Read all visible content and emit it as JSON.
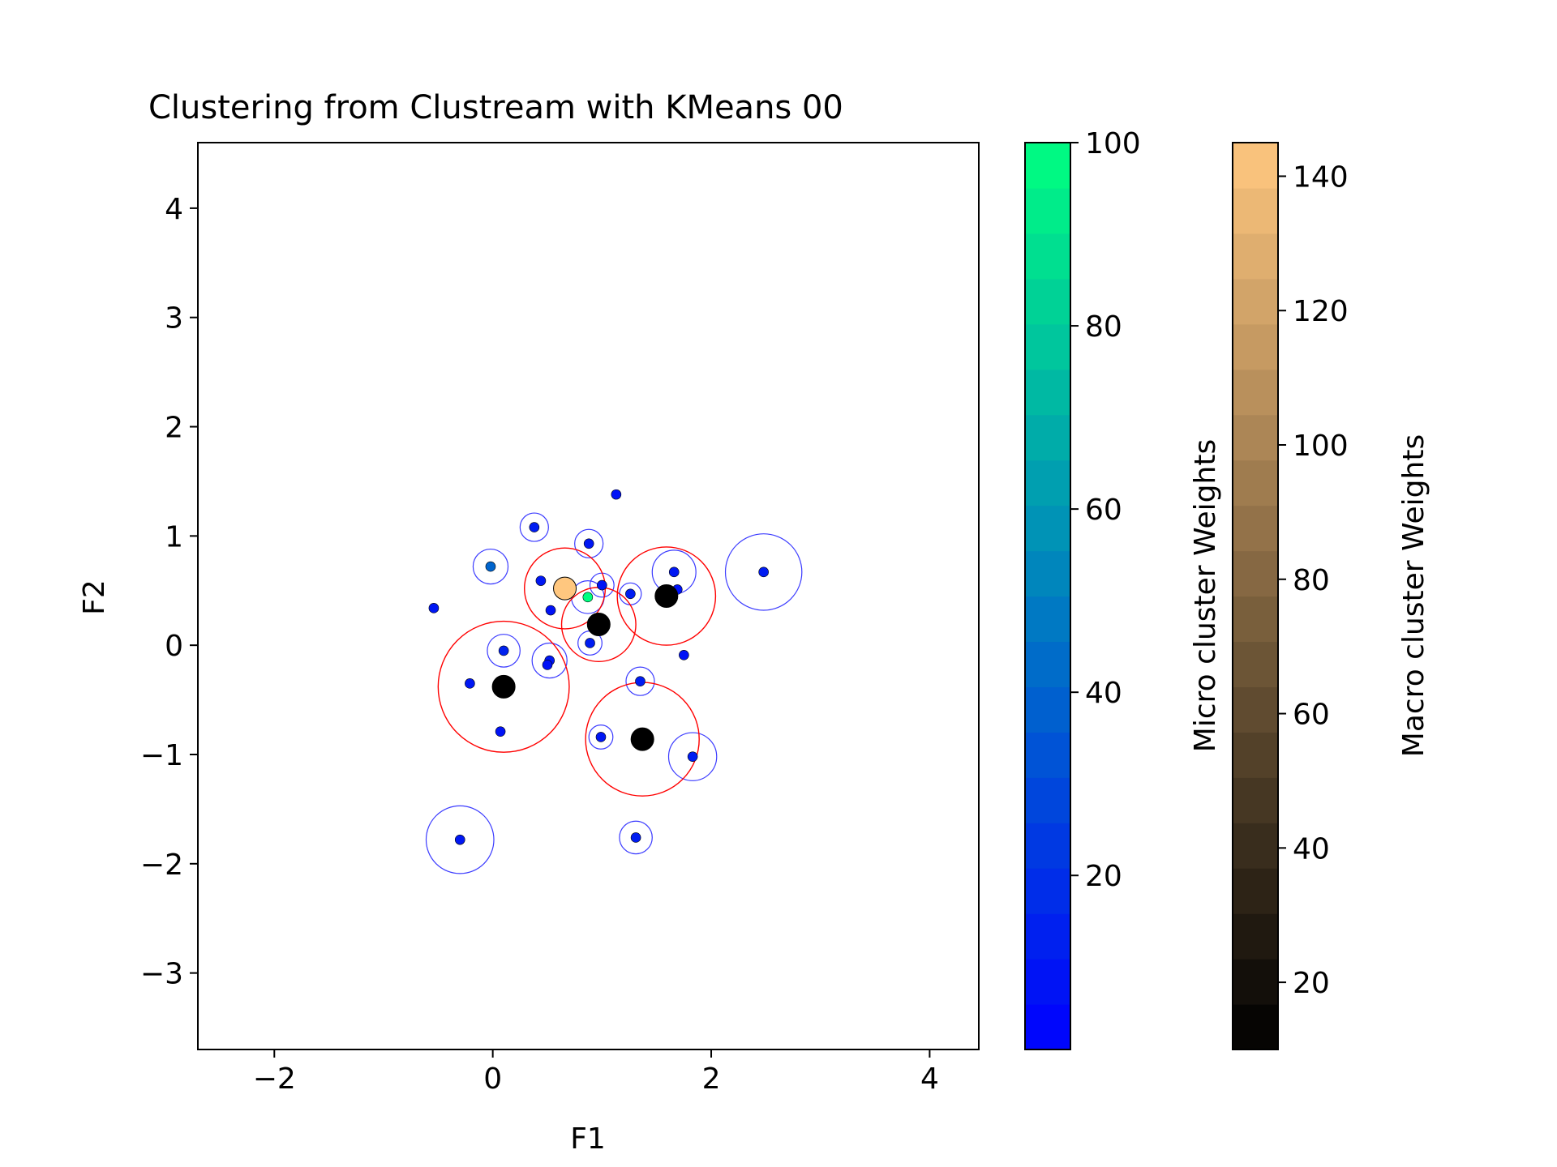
{
  "chart_data": {
    "type": "scatter",
    "title": "Clustering from Clustream with KMeans 00",
    "xlabel": "F1",
    "ylabel": "F2",
    "xlim": [
      -2.7,
      4.45
    ],
    "ylim": [
      -3.7,
      4.6
    ],
    "xticks": [
      -2,
      0,
      2,
      4
    ],
    "yticks": [
      -3,
      -2,
      -1,
      0,
      1,
      2,
      3,
      4
    ],
    "grid": false,
    "micro_clusters": [
      {
        "x": 0.38,
        "y": 1.08,
        "radius": 0.13,
        "weight": 12
      },
      {
        "x": 0.88,
        "y": 0.93,
        "radius": 0.13,
        "weight": 10
      },
      {
        "x": 1.13,
        "y": 1.38,
        "radius": 0,
        "weight": 8
      },
      {
        "x": -0.02,
        "y": 0.72,
        "radius": 0.16,
        "weight": 40
      },
      {
        "x": 0.44,
        "y": 0.59,
        "radius": 0,
        "weight": 10
      },
      {
        "x": 0.87,
        "y": 0.44,
        "radius": 0.15,
        "weight": 100
      },
      {
        "x": 1.0,
        "y": 0.55,
        "radius": 0.11,
        "weight": 9
      },
      {
        "x": 1.26,
        "y": 0.47,
        "radius": 0.1,
        "weight": 12
      },
      {
        "x": 1.66,
        "y": 0.67,
        "radius": 0.2,
        "weight": 10
      },
      {
        "x": 1.69,
        "y": 0.51,
        "radius": 0,
        "weight": 8
      },
      {
        "x": 2.48,
        "y": 0.67,
        "radius": 0.35,
        "weight": 12
      },
      {
        "x": -0.54,
        "y": 0.34,
        "radius": 0,
        "weight": 10
      },
      {
        "x": 0.53,
        "y": 0.32,
        "radius": 0,
        "weight": 8
      },
      {
        "x": 0.89,
        "y": 0.02,
        "radius": 0.11,
        "weight": 12
      },
      {
        "x": 0.1,
        "y": -0.05,
        "radius": 0.15,
        "weight": 14
      },
      {
        "x": 0.52,
        "y": -0.14,
        "radius": 0.16,
        "weight": 10
      },
      {
        "x": 0.5,
        "y": -0.18,
        "radius": 0,
        "weight": 8
      },
      {
        "x": 1.75,
        "y": -0.09,
        "radius": 0,
        "weight": 8
      },
      {
        "x": -0.21,
        "y": -0.35,
        "radius": 0,
        "weight": 10
      },
      {
        "x": 1.35,
        "y": -0.33,
        "radius": 0.13,
        "weight": 12
      },
      {
        "x": 0.07,
        "y": -0.79,
        "radius": 0,
        "weight": 8
      },
      {
        "x": 0.99,
        "y": -0.84,
        "radius": 0.11,
        "weight": 10
      },
      {
        "x": 1.83,
        "y": -1.02,
        "radius": 0.22,
        "weight": 12
      },
      {
        "x": -0.3,
        "y": -1.78,
        "radius": 0.31,
        "weight": 10
      },
      {
        "x": 1.31,
        "y": -1.76,
        "radius": 0.15,
        "weight": 12
      }
    ],
    "macro_clusters": [
      {
        "x": 0.66,
        "y": 0.52,
        "radius": 0.37,
        "weight": 145
      },
      {
        "x": 1.59,
        "y": 0.45,
        "radius": 0.45,
        "weight": 10
      },
      {
        "x": 0.97,
        "y": 0.19,
        "radius": 0.34,
        "weight": 10
      },
      {
        "x": 0.1,
        "y": -0.38,
        "radius": 0.6,
        "weight": 10
      },
      {
        "x": 1.37,
        "y": -0.86,
        "radius": 0.52,
        "weight": 10
      }
    ],
    "colorbars": [
      {
        "label": "Micro cluster Weights",
        "range": [
          1,
          100
        ],
        "ticks": [
          20,
          40,
          60,
          80,
          100
        ],
        "colormap": "winter",
        "low_color": "#0000ff",
        "high_color": "#00ff80"
      },
      {
        "label": "Macro cluster Weights",
        "range": [
          10,
          145
        ],
        "ticks": [
          20,
          40,
          60,
          80,
          100,
          120,
          140
        ],
        "colormap": "copper",
        "low_color": "#000000",
        "high_color": "#ffc77f"
      }
    ],
    "colors": {
      "micro_circle": "#3b3bff",
      "macro_circle": "#ff0000",
      "axes": "#000000"
    }
  }
}
